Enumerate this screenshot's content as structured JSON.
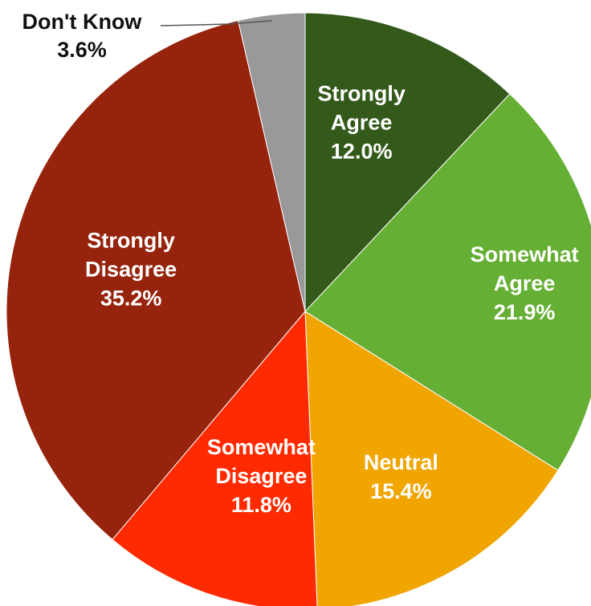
{
  "chart_data": {
    "type": "pie",
    "start": "top",
    "direction": "clockwise",
    "slices": [
      {
        "label": "Strongly Agree",
        "value": 12.0,
        "value_label": "12.0%",
        "color": "#335a1a",
        "label_lines": [
          "Strongly",
          "Agree"
        ]
      },
      {
        "label": "Somewhat Agree",
        "value": 21.9,
        "value_label": "21.9%",
        "color": "#66af35",
        "label_lines": [
          "Somewhat",
          "Agree"
        ]
      },
      {
        "label": "Neutral",
        "value": 15.4,
        "value_label": "15.4%",
        "color": "#f0a500",
        "label_lines": [
          "Neutral"
        ]
      },
      {
        "label": "Somewhat Disagree",
        "value": 11.8,
        "value_label": "11.8%",
        "color": "#ff2a00",
        "label_lines": [
          "Somewhat",
          "Disagree"
        ]
      },
      {
        "label": "Strongly Disagree",
        "value": 35.2,
        "value_label": "35.2%",
        "color": "#96230c",
        "label_lines": [
          "Strongly",
          "Disagree"
        ]
      },
      {
        "label": "Don't Know",
        "value": 3.6,
        "value_label": "3.6%",
        "color": "#999999",
        "label_lines": [
          "Don't Know"
        ]
      }
    ]
  }
}
